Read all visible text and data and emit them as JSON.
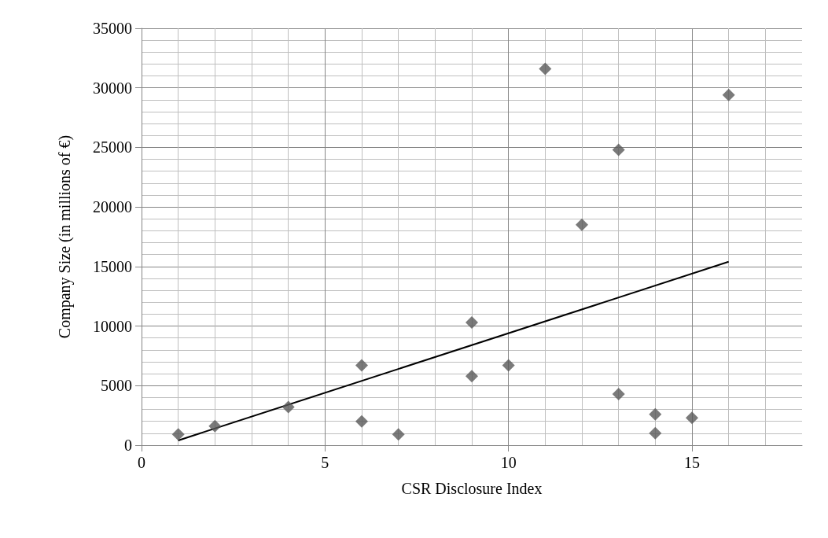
{
  "chart_data": {
    "type": "scatter",
    "xlabel": "CSR Disclosure Index",
    "ylabel": "Company Size (in millions of €)",
    "xlim": [
      0,
      18
    ],
    "xticks": [
      0,
      5,
      10,
      15
    ],
    "ylim": [
      0,
      35000
    ],
    "yticks": [
      0,
      5000,
      10000,
      15000,
      20000,
      25000,
      30000,
      35000
    ],
    "grid": true,
    "marker": "diamond",
    "series": [
      {
        "color": "#595959",
        "x": [
          1,
          2,
          4,
          6,
          6,
          7,
          9,
          9,
          10,
          11,
          12,
          13,
          13,
          14,
          14,
          15,
          16
        ],
        "values": [
          900,
          1600,
          3200,
          6700,
          2000,
          900,
          10300,
          5800,
          6700,
          31600,
          18500,
          24800,
          4300,
          2600,
          1000,
          2300,
          29400
        ]
      },
      {
        "type": "line",
        "color": "#000000",
        "x": [
          1,
          16
        ],
        "values": [
          400,
          15400
        ],
        "marker": "none"
      }
    ]
  }
}
